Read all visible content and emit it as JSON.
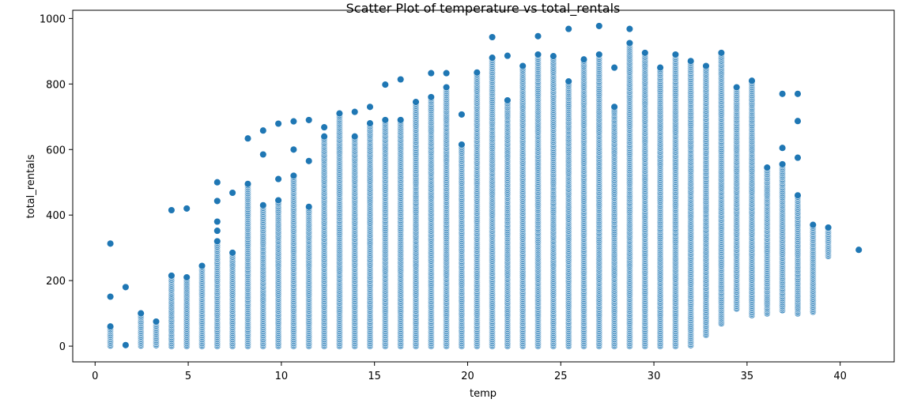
{
  "chart_data": {
    "type": "scatter",
    "title": "Scatter Plot of temperature vs total_rentals",
    "xlabel": "temp",
    "ylabel": "total_rentals",
    "xlim": [
      -1.2,
      42.9
    ],
    "ylim": [
      -48,
      1025
    ],
    "xticks": [
      0,
      5,
      10,
      15,
      20,
      25,
      30,
      35,
      40
    ],
    "yticks": [
      0,
      200,
      400,
      600,
      800,
      1000
    ],
    "grid": false,
    "legend": "none",
    "marker_color": "#1f77b4",
    "marker_edge": "#ffffff",
    "columns": [
      {
        "x": 0.82,
        "min": 2,
        "max": 60,
        "extra": [
          151,
          313
        ]
      },
      {
        "x": 1.64,
        "min": 3,
        "max": 3,
        "extra": [
          180
        ]
      },
      {
        "x": 2.46,
        "min": 2,
        "max": 100
      },
      {
        "x": 3.28,
        "min": 3,
        "max": 75
      },
      {
        "x": 4.1,
        "min": 1,
        "max": 215,
        "extra": [
          415
        ]
      },
      {
        "x": 4.92,
        "min": 1,
        "max": 210,
        "extra": [
          420
        ]
      },
      {
        "x": 5.74,
        "min": 1,
        "max": 245
      },
      {
        "x": 6.56,
        "min": 1,
        "max": 320,
        "extra": [
          352,
          380,
          443,
          500
        ]
      },
      {
        "x": 7.38,
        "min": 1,
        "max": 285,
        "extra": [
          468
        ]
      },
      {
        "x": 8.2,
        "min": 1,
        "max": 495,
        "extra": [
          634
        ]
      },
      {
        "x": 9.02,
        "min": 1,
        "max": 430,
        "extra": [
          585,
          658
        ]
      },
      {
        "x": 9.84,
        "min": 1,
        "max": 445,
        "extra": [
          510,
          679
        ]
      },
      {
        "x": 10.66,
        "min": 1,
        "max": 520,
        "extra": [
          600,
          686
        ]
      },
      {
        "x": 11.48,
        "min": 1,
        "max": 425,
        "extra": [
          565,
          690
        ]
      },
      {
        "x": 12.3,
        "min": 1,
        "max": 640,
        "extra": [
          668
        ]
      },
      {
        "x": 13.12,
        "min": 1,
        "max": 710
      },
      {
        "x": 13.94,
        "min": 1,
        "max": 640,
        "extra": [
          715
        ]
      },
      {
        "x": 14.76,
        "min": 1,
        "max": 680,
        "extra": [
          730
        ]
      },
      {
        "x": 15.58,
        "min": 1,
        "max": 690,
        "extra": [
          798
        ]
      },
      {
        "x": 16.4,
        "min": 1,
        "max": 690,
        "extra": [
          814
        ]
      },
      {
        "x": 17.22,
        "min": 1,
        "max": 745
      },
      {
        "x": 18.04,
        "min": 1,
        "max": 760,
        "extra": [
          833
        ]
      },
      {
        "x": 18.86,
        "min": 1,
        "max": 790,
        "extra": [
          833
        ]
      },
      {
        "x": 19.68,
        "min": 1,
        "max": 615,
        "extra": [
          707
        ]
      },
      {
        "x": 20.5,
        "min": 1,
        "max": 835
      },
      {
        "x": 21.32,
        "min": 1,
        "max": 880,
        "extra": [
          943
        ]
      },
      {
        "x": 22.14,
        "min": 1,
        "max": 750,
        "extra": [
          886
        ]
      },
      {
        "x": 22.96,
        "min": 1,
        "max": 855
      },
      {
        "x": 23.78,
        "min": 1,
        "max": 890,
        "extra": [
          946
        ]
      },
      {
        "x": 24.6,
        "min": 1,
        "max": 885
      },
      {
        "x": 25.42,
        "min": 1,
        "max": 808,
        "extra": [
          968
        ]
      },
      {
        "x": 26.24,
        "min": 1,
        "max": 875
      },
      {
        "x": 27.06,
        "min": 1,
        "max": 890,
        "extra": [
          977
        ]
      },
      {
        "x": 27.88,
        "min": 1,
        "max": 730,
        "extra": [
          850
        ]
      },
      {
        "x": 28.7,
        "min": 1,
        "max": 925,
        "extra": [
          968
        ]
      },
      {
        "x": 29.52,
        "min": 1,
        "max": 895
      },
      {
        "x": 30.34,
        "min": 1,
        "max": 850
      },
      {
        "x": 31.16,
        "min": 1,
        "max": 890
      },
      {
        "x": 31.98,
        "min": 3,
        "max": 870
      },
      {
        "x": 32.8,
        "min": 35,
        "max": 855
      },
      {
        "x": 33.62,
        "min": 70,
        "max": 895
      },
      {
        "x": 34.44,
        "min": 115,
        "max": 790
      },
      {
        "x": 35.26,
        "min": 95,
        "max": 810
      },
      {
        "x": 36.08,
        "min": 100,
        "max": 545
      },
      {
        "x": 36.9,
        "min": 110,
        "max": 555,
        "extra": [
          605,
          770
        ]
      },
      {
        "x": 37.72,
        "min": 100,
        "max": 460,
        "extra": [
          575,
          687,
          770
        ]
      },
      {
        "x": 38.54,
        "min": 105,
        "max": 370
      },
      {
        "x": 39.36,
        "min": 275,
        "max": 362
      },
      {
        "x": 41.0,
        "min": 294,
        "max": 294
      }
    ]
  }
}
